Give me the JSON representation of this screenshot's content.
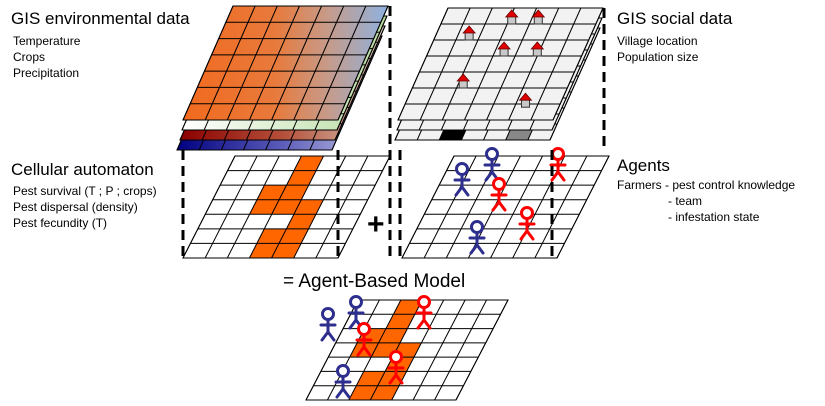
{
  "gis_environmental": {
    "title": "GIS environmental data",
    "items": [
      "Temperature",
      "Crops",
      "Precipitation"
    ]
  },
  "gis_social": {
    "title": "GIS social data",
    "items": [
      "Village location",
      "Population size"
    ]
  },
  "cellular_automaton": {
    "title": "Cellular automaton",
    "items": [
      "Pest survival (T ; P ; crops)",
      "Pest dispersal (density)",
      "Pest fecundity (T)"
    ]
  },
  "agents": {
    "title": "Agents",
    "line": "Farmers - pest control knowledge",
    "sub_items": [
      "- team",
      "- infestation state"
    ]
  },
  "plus_sign": "+",
  "result_title": "= Agent-Based Model",
  "colors": {
    "pest": "#ff6600",
    "agent_blue": "#2e2e8f",
    "agent_red": "#ff0000",
    "house_red": "#e00000",
    "grid_line": "#000000"
  },
  "icons": [
    "house-icon",
    "farmer-icon"
  ]
}
